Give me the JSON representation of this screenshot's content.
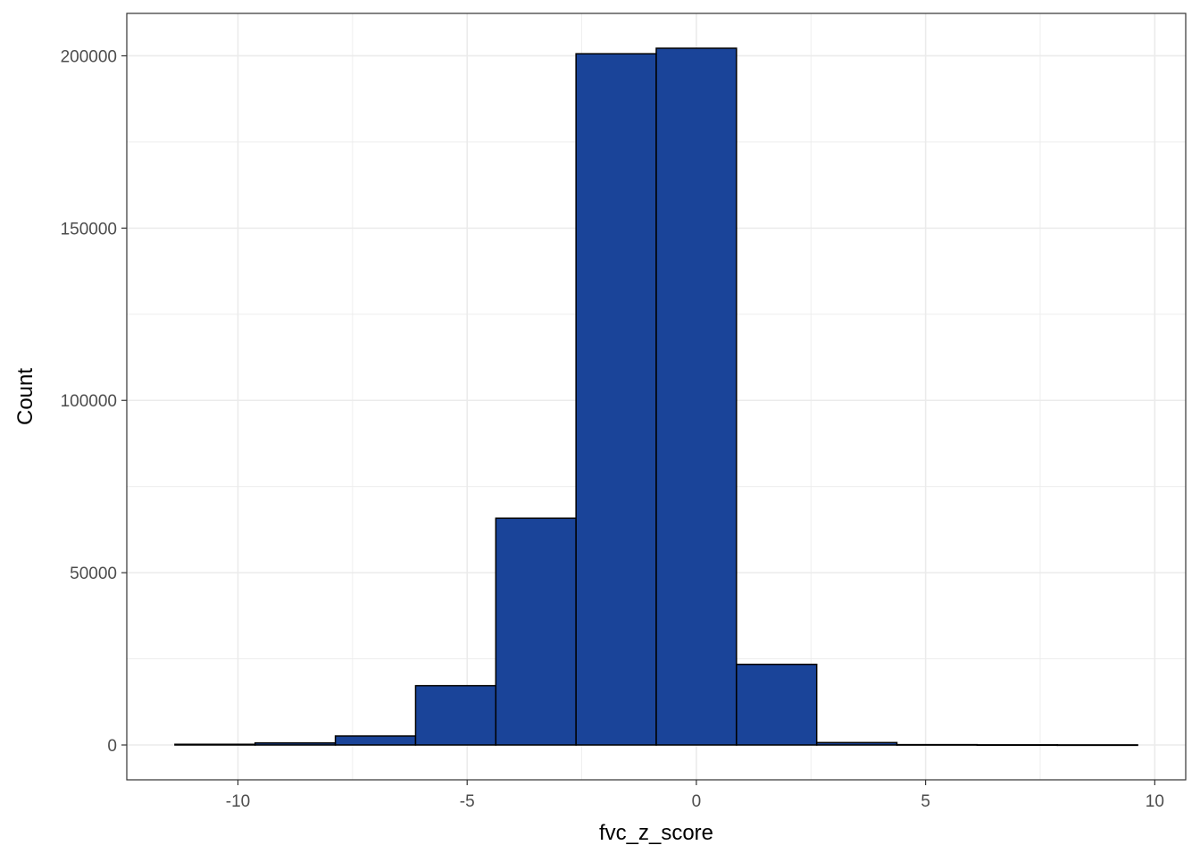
{
  "chart_data": {
    "type": "bar",
    "subtype": "histogram",
    "bin_width": 1.75,
    "bins": [
      {
        "x0": -11.375,
        "x1": -9.625,
        "count": 200
      },
      {
        "x0": -9.625,
        "x1": -7.875,
        "count": 600
      },
      {
        "x0": -7.875,
        "x1": -6.125,
        "count": 2600
      },
      {
        "x0": -6.125,
        "x1": -4.375,
        "count": 17200
      },
      {
        "x0": -4.375,
        "x1": -2.625,
        "count": 65800
      },
      {
        "x0": -2.625,
        "x1": -0.875,
        "count": 200600
      },
      {
        "x0": -0.875,
        "x1": 0.875,
        "count": 202200
      },
      {
        "x0": 0.875,
        "x1": 2.625,
        "count": 23400
      },
      {
        "x0": 2.625,
        "x1": 4.375,
        "count": 700
      },
      {
        "x0": 4.375,
        "x1": 6.125,
        "count": 100
      },
      {
        "x0": 6.125,
        "x1": 7.875,
        "count": 50
      },
      {
        "x0": 7.875,
        "x1": 9.625,
        "count": 30
      }
    ],
    "xlabel": "fvc_z_score",
    "ylabel": "Count",
    "xlim": [
      -12.425,
      10.675
    ],
    "ylim": [
      -10110,
      212310
    ],
    "x_ticks": [
      {
        "value": -10,
        "label": "-10"
      },
      {
        "value": -5,
        "label": "-5"
      },
      {
        "value": 0,
        "label": "0"
      },
      {
        "value": 5,
        "label": "5"
      },
      {
        "value": 10,
        "label": "10"
      }
    ],
    "y_ticks": [
      {
        "value": 0,
        "label": "0"
      },
      {
        "value": 50000,
        "label": "50000"
      },
      {
        "value": 100000,
        "label": "100000"
      },
      {
        "value": 150000,
        "label": "150000"
      },
      {
        "value": 200000,
        "label": "200000"
      }
    ],
    "grid": true,
    "fill_color": "#1a4499",
    "outline_color": "#000000",
    "grid_color": "#ebebeb",
    "panel_border_color": "#333333"
  }
}
